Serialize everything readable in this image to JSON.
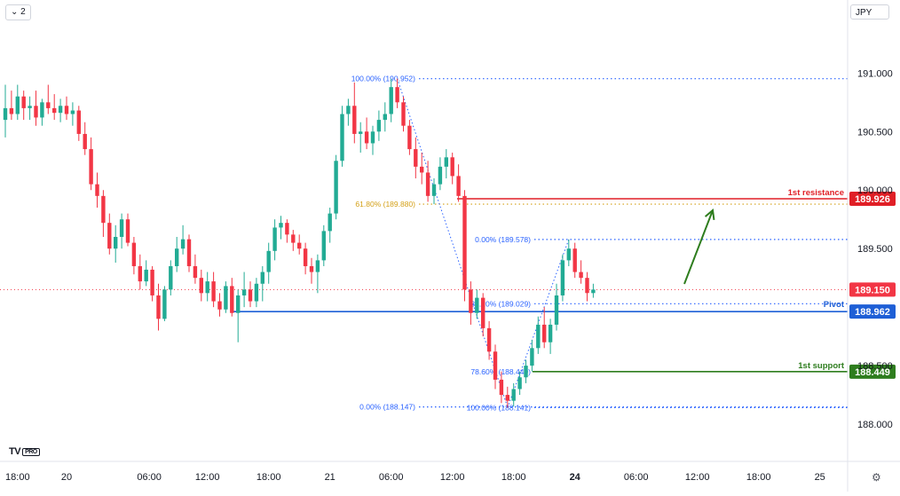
{
  "toolbar": {
    "interval_label": "2",
    "interval_icon": "chevron-down-icon",
    "currency_label": "JPY"
  },
  "logo": {
    "text": "TV",
    "badge": "PRO"
  },
  "settings_icon": "gear-icon",
  "colors": {
    "up": "#22ab94",
    "down": "#f23645",
    "resistance": "#e01f26",
    "pivot": "#1e5fd6",
    "support": "#2e7d1e",
    "fib": "#2962ff",
    "fib_orange": "#d4a017",
    "arrow": "#2e7d1e",
    "current": "#f23645",
    "grid": "#f0f3fa"
  },
  "chart_data": {
    "type": "candlestick",
    "symbol_currency": "JPY",
    "ylim": [
      187.97,
      191.23
    ],
    "y_ticks": [
      {
        "value": 191.0,
        "label": "191.000"
      },
      {
        "value": 190.5,
        "label": "190.500"
      },
      {
        "value": 190.0,
        "label": "190.000"
      },
      {
        "value": 189.5,
        "label": "189.500"
      },
      {
        "value": 188.5,
        "label": "188.500"
      },
      {
        "value": 188.0,
        "label": "188.000"
      }
    ],
    "x_ticks": [
      {
        "label": "18:00",
        "bar": 2,
        "bold": false
      },
      {
        "label": "20",
        "bar": 10,
        "bold": false
      },
      {
        "label": "06:00",
        "bar": 23.5,
        "bold": false
      },
      {
        "label": "12:00",
        "bar": 33,
        "bold": false
      },
      {
        "label": "18:00",
        "bar": 43,
        "bold": false
      },
      {
        "label": "21",
        "bar": 53,
        "bold": false
      },
      {
        "label": "06:00",
        "bar": 63,
        "bold": false
      },
      {
        "label": "12:00",
        "bar": 73,
        "bold": false
      },
      {
        "label": "18:00",
        "bar": 83,
        "bold": false
      },
      {
        "label": "24",
        "bar": 93,
        "bold": true
      },
      {
        "label": "06:00",
        "bar": 103,
        "bold": false
      },
      {
        "label": "12:00",
        "bar": 113,
        "bold": false
      },
      {
        "label": "18:00",
        "bar": 123,
        "bold": false
      },
      {
        "label": "25",
        "bar": 133,
        "bold": false
      }
    ],
    "bars": [
      [
        190.6,
        190.9,
        190.45,
        190.7
      ],
      [
        190.7,
        190.85,
        190.6,
        190.65
      ],
      [
        190.65,
        190.9,
        190.6,
        190.8
      ],
      [
        190.8,
        190.85,
        190.6,
        190.7
      ],
      [
        190.7,
        190.8,
        190.6,
        190.72
      ],
      [
        190.72,
        190.85,
        190.55,
        190.62
      ],
      [
        190.62,
        190.78,
        190.55,
        190.75
      ],
      [
        190.75,
        190.9,
        190.65,
        190.7
      ],
      [
        190.7,
        190.82,
        190.6,
        190.66
      ],
      [
        190.66,
        190.78,
        190.58,
        190.72
      ],
      [
        190.72,
        190.8,
        190.6,
        190.65
      ],
      [
        190.65,
        190.75,
        190.55,
        190.68
      ],
      [
        190.68,
        190.72,
        190.42,
        190.48
      ],
      [
        190.48,
        190.58,
        190.3,
        190.35
      ],
      [
        190.35,
        190.45,
        190.0,
        190.05
      ],
      [
        190.05,
        190.15,
        189.85,
        189.95
      ],
      [
        189.95,
        190.0,
        189.6,
        189.72
      ],
      [
        189.72,
        189.8,
        189.45,
        189.5
      ],
      [
        189.5,
        189.7,
        189.38,
        189.6
      ],
      [
        189.6,
        189.8,
        189.5,
        189.75
      ],
      [
        189.75,
        189.8,
        189.52,
        189.55
      ],
      [
        189.55,
        189.6,
        189.28,
        189.35
      ],
      [
        189.35,
        189.45,
        189.15,
        189.22
      ],
      [
        189.22,
        189.4,
        189.18,
        189.32
      ],
      [
        189.32,
        189.35,
        189.05,
        189.1
      ],
      [
        189.1,
        189.2,
        188.8,
        188.9
      ],
      [
        188.9,
        189.18,
        188.88,
        189.15
      ],
      [
        189.15,
        189.4,
        189.1,
        189.35
      ],
      [
        189.35,
        189.6,
        189.3,
        189.5
      ],
      [
        189.5,
        189.7,
        189.45,
        189.58
      ],
      [
        189.58,
        189.62,
        189.3,
        189.35
      ],
      [
        189.35,
        189.45,
        189.2,
        189.25
      ],
      [
        189.25,
        189.32,
        189.05,
        189.12
      ],
      [
        189.12,
        189.3,
        189.05,
        189.22
      ],
      [
        189.22,
        189.3,
        189.0,
        189.05
      ],
      [
        189.05,
        189.12,
        188.92,
        188.98
      ],
      [
        188.98,
        189.22,
        188.95,
        189.18
      ],
      [
        189.18,
        189.25,
        188.92,
        188.95
      ],
      [
        188.95,
        189.15,
        188.7,
        189.1
      ],
      [
        189.1,
        189.3,
        189.0,
        189.15
      ],
      [
        189.15,
        189.22,
        189.0,
        189.05
      ],
      [
        189.05,
        189.25,
        189.0,
        189.2
      ],
      [
        189.2,
        189.35,
        189.05,
        189.3
      ],
      [
        189.3,
        189.55,
        189.2,
        189.48
      ],
      [
        189.48,
        189.75,
        189.4,
        189.68
      ],
      [
        189.68,
        189.78,
        189.58,
        189.72
      ],
      [
        189.72,
        189.75,
        189.55,
        189.62
      ],
      [
        189.62,
        189.66,
        189.48,
        189.55
      ],
      [
        189.55,
        189.62,
        189.45,
        189.5
      ],
      [
        189.5,
        189.55,
        189.28,
        189.35
      ],
      [
        189.35,
        189.42,
        189.2,
        189.3
      ],
      [
        189.3,
        189.45,
        189.12,
        189.4
      ],
      [
        189.4,
        189.7,
        189.35,
        189.65
      ],
      [
        189.65,
        189.85,
        189.55,
        189.8
      ],
      [
        189.8,
        190.3,
        189.75,
        190.25
      ],
      [
        190.25,
        190.72,
        190.2,
        190.65
      ],
      [
        190.65,
        190.78,
        190.55,
        190.72
      ],
      [
        190.72,
        190.92,
        190.4,
        190.48
      ],
      [
        190.48,
        190.58,
        190.32,
        190.5
      ],
      [
        190.5,
        190.62,
        190.35,
        190.4
      ],
      [
        190.4,
        190.55,
        190.3,
        190.5
      ],
      [
        190.5,
        190.68,
        190.42,
        190.6
      ],
      [
        190.6,
        190.75,
        190.5,
        190.65
      ],
      [
        190.65,
        190.95,
        190.58,
        190.88
      ],
      [
        190.88,
        190.952,
        190.7,
        190.75
      ],
      [
        190.75,
        190.8,
        190.5,
        190.55
      ],
      [
        190.55,
        190.6,
        190.3,
        190.35
      ],
      [
        190.35,
        190.45,
        190.1,
        190.2
      ],
      [
        190.2,
        190.32,
        190.05,
        190.15
      ],
      [
        190.15,
        190.25,
        189.9,
        189.95
      ],
      [
        189.95,
        190.1,
        189.88,
        190.05
      ],
      [
        190.05,
        190.28,
        190.0,
        190.2
      ],
      [
        190.2,
        190.35,
        190.1,
        190.28
      ],
      [
        190.28,
        190.32,
        190.05,
        190.12
      ],
      [
        190.12,
        190.22,
        189.9,
        189.95
      ],
      [
        189.95,
        190.0,
        189.05,
        189.15
      ],
      [
        189.15,
        189.22,
        188.85,
        188.95
      ],
      [
        188.95,
        189.15,
        188.9,
        189.08
      ],
      [
        189.08,
        189.12,
        188.75,
        188.82
      ],
      [
        188.82,
        188.88,
        188.55,
        188.62
      ],
      [
        188.62,
        188.68,
        188.3,
        188.38
      ],
      [
        188.38,
        188.45,
        188.18,
        188.25
      ],
      [
        188.25,
        188.32,
        188.141,
        188.2
      ],
      [
        188.2,
        188.35,
        188.15,
        188.3
      ],
      [
        188.3,
        188.45,
        188.25,
        188.4
      ],
      [
        188.4,
        188.55,
        188.35,
        188.5
      ],
      [
        188.5,
        188.72,
        188.45,
        188.65
      ],
      [
        188.65,
        188.92,
        188.6,
        188.85
      ],
      [
        188.85,
        189.0,
        188.65,
        188.7
      ],
      [
        188.7,
        188.9,
        188.6,
        188.85
      ],
      [
        188.85,
        189.2,
        188.8,
        189.1
      ],
      [
        189.1,
        189.45,
        189.05,
        189.4
      ],
      [
        189.4,
        189.578,
        189.35,
        189.5
      ],
      [
        189.5,
        189.55,
        189.25,
        189.3
      ],
      [
        189.3,
        189.4,
        189.2,
        189.25
      ],
      [
        189.25,
        189.3,
        189.05,
        189.12
      ],
      [
        189.12,
        189.2,
        189.08,
        189.15
      ]
    ],
    "current_price": {
      "value": 189.15,
      "label": "189.150"
    },
    "levels": [
      {
        "name": "1st resistance",
        "value": 189.926,
        "label": "189.926",
        "color_key": "resistance"
      },
      {
        "name": "Pivot",
        "value": 188.962,
        "label": "188.962",
        "color_key": "pivot"
      },
      {
        "name": "1st support",
        "value": 188.449,
        "label": "188.449",
        "color_key": "support"
      }
    ],
    "fib_left": [
      {
        "label": "100.00% (190.952)",
        "value": 190.952,
        "color_key": "fib"
      },
      {
        "label": "61.80% (189.880)",
        "value": 189.88,
        "color_key": "fib_orange"
      },
      {
        "label": "0.00% (188.147)",
        "value": 188.147,
        "color_key": "fib"
      }
    ],
    "fib_right": [
      {
        "label": "0.00% (189.578)",
        "value": 189.578
      },
      {
        "label": "38.20% (189.029)",
        "value": 189.029
      },
      {
        "label": "78.60% (188.449)",
        "value": 188.449
      },
      {
        "label": "100.00% (188.141)",
        "value": 188.141
      }
    ]
  }
}
